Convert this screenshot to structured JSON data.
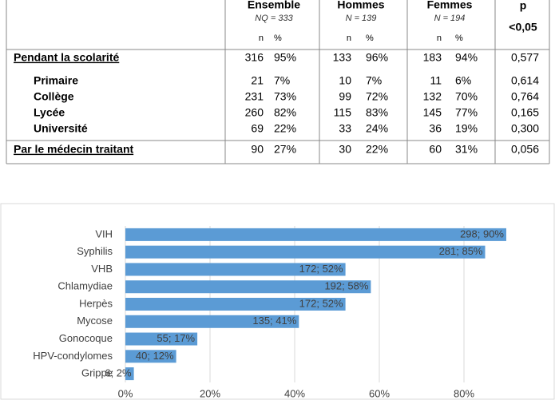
{
  "table": {
    "columns": [
      {
        "title": "Ensemble",
        "subtitle": "NQ = 333",
        "n": "n",
        "pct": "%"
      },
      {
        "title": "Hommes",
        "subtitle": "N = 139",
        "n": "n",
        "pct": "%"
      },
      {
        "title": "Femmes",
        "subtitle": "N = 194",
        "n": "n",
        "pct": "%"
      }
    ],
    "p_column": {
      "title": "p",
      "subtitle": "<0,05"
    },
    "sections": [
      {
        "label": "Pendant la scolarité",
        "cells": [
          "316",
          "95%",
          "133",
          "96%",
          "183",
          "94%",
          "0,577"
        ],
        "items": [
          {
            "label": "Primaire",
            "cells": [
              "21",
              "7%",
              "10",
              "7%",
              "11",
              "6%",
              "0,614"
            ]
          },
          {
            "label": "Collège",
            "cells": [
              "231",
              "73%",
              "99",
              "72%",
              "132",
              "70%",
              "0,764"
            ]
          },
          {
            "label": "Lycée",
            "cells": [
              "260",
              "82%",
              "115",
              "83%",
              "145",
              "77%",
              "0,165"
            ]
          },
          {
            "label": "Université",
            "cells": [
              "69",
              "22%",
              "33",
              "24%",
              "36",
              "19%",
              "0,300"
            ]
          }
        ]
      },
      {
        "label": "Par le médecin traitant",
        "cells": [
          "90",
          "27%",
          "30",
          "22%",
          "60",
          "31%",
          "0,056"
        ]
      }
    ]
  },
  "chart_data": {
    "type": "bar",
    "orientation": "horizontal",
    "categories": [
      "VIH",
      "Syphilis",
      "VHB",
      "Chlamydiae",
      "Herpès",
      "Mycose",
      "Gonocoque",
      "HPV-condylomes",
      "Grippe"
    ],
    "values": [
      90,
      85,
      52,
      58,
      52,
      41,
      17,
      12,
      2
    ],
    "value_labels": [
      "298; 90%",
      "281; 85%",
      "172; 52%",
      "192; 58%",
      "172; 52%",
      "135; 41%",
      "55; 17%",
      "40; 12%",
      "6; 2%"
    ],
    "color": "#5b9bd5",
    "xlim": [
      0,
      100
    ],
    "xticks": [
      {
        "value": 0,
        "label": "0%"
      },
      {
        "value": 20,
        "label": "20%"
      },
      {
        "value": 40,
        "label": "40%"
      },
      {
        "value": 60,
        "label": "60%"
      },
      {
        "value": 80,
        "label": "80%"
      }
    ],
    "grid": true
  }
}
